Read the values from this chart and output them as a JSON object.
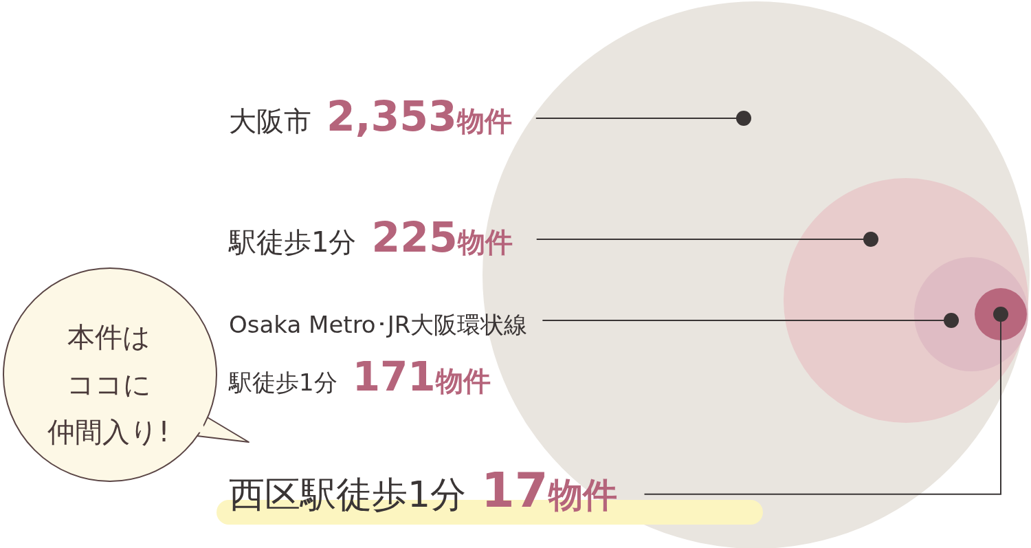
{
  "chart_data": {
    "type": "other",
    "categories": [
      "大阪市",
      "駅徒歩1分",
      "Osaka Metro･JR大阪環状線駅徒歩1分",
      "西区駅徒歩1分"
    ],
    "values": [
      2353,
      225,
      171,
      17
    ],
    "value_labels": [
      "2,353物件",
      "225物件",
      "171物件",
      "17物件"
    ],
    "colors": [
      "#e9e5df",
      "#e8cccc",
      "#dfbcc4",
      "#b8677d"
    ],
    "annotations": [
      "本件は",
      "ココに",
      "仲間入り!"
    ]
  }
}
